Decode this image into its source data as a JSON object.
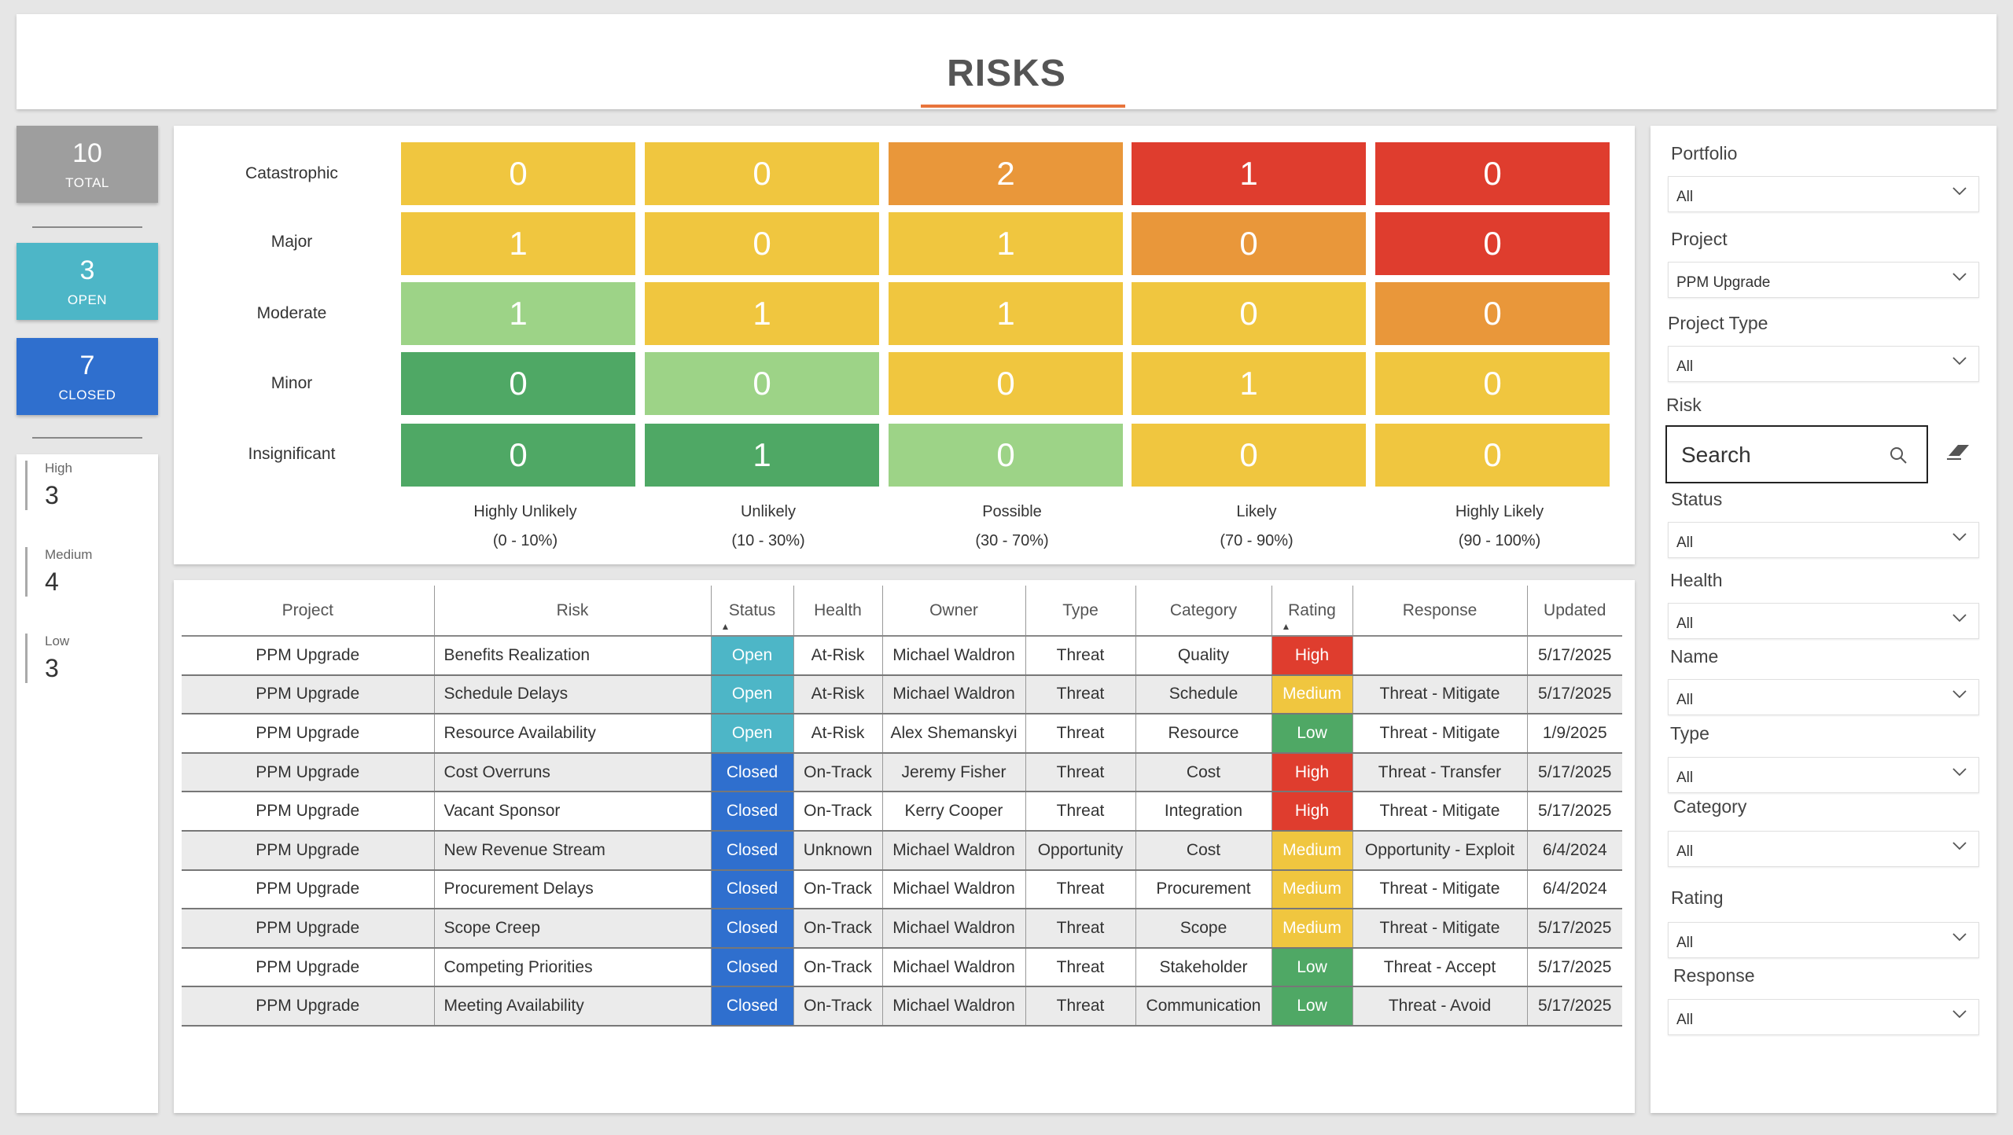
{
  "title": "RISKS",
  "summary": {
    "total": {
      "count": "10",
      "label": "TOTAL"
    },
    "open": {
      "count": "3",
      "label": "OPEN"
    },
    "closed": {
      "count": "7",
      "label": "CLOSED"
    }
  },
  "ratings": [
    {
      "label": "High",
      "count": "3"
    },
    {
      "label": "Medium",
      "count": "4"
    },
    {
      "label": "Low",
      "count": "3"
    }
  ],
  "matrix": {
    "impacts": [
      "Catastrophic",
      "Major",
      "Moderate",
      "Minor",
      "Insignificant"
    ],
    "likelihoods": [
      {
        "name": "Highly Unlikely",
        "range": "(0 - 10%)"
      },
      {
        "name": "Unlikely",
        "range": "(10 - 30%)"
      },
      {
        "name": "Possible",
        "range": "(30 - 70%)"
      },
      {
        "name": "Likely",
        "range": "(70 - 90%)"
      },
      {
        "name": "Highly Likely",
        "range": "(90 - 100%)"
      }
    ],
    "values": [
      [
        "0",
        "0",
        "2",
        "1",
        "0"
      ],
      [
        "1",
        "0",
        "1",
        "0",
        "0"
      ],
      [
        "1",
        "1",
        "1",
        "0",
        "0"
      ],
      [
        "0",
        "0",
        "0",
        "1",
        "0"
      ],
      [
        "0",
        "1",
        "0",
        "0",
        "0"
      ]
    ],
    "colors": [
      [
        "#f0c63f",
        "#f0c63f",
        "#e9973a",
        "#df3d2e",
        "#df3d2e"
      ],
      [
        "#f0c63f",
        "#f0c63f",
        "#f0c63f",
        "#e9973a",
        "#df3d2e"
      ],
      [
        "#9dd387",
        "#f0c63f",
        "#f0c63f",
        "#f0c63f",
        "#e9973a"
      ],
      [
        "#4fa865",
        "#9dd387",
        "#f0c63f",
        "#f0c63f",
        "#f0c63f"
      ],
      [
        "#4fa865",
        "#4fa865",
        "#9dd387",
        "#f0c63f",
        "#f0c63f"
      ]
    ]
  },
  "table": {
    "headers": [
      "Project",
      "Risk",
      "Status",
      "Health",
      "Owner",
      "Type",
      "Category",
      "Rating",
      "Response",
      "Updated"
    ],
    "rows": [
      [
        "PPM Upgrade",
        "Benefits Realization",
        "Open",
        "At-Risk",
        "Michael Waldron",
        "Threat",
        "Quality",
        "High",
        "",
        "5/17/2025"
      ],
      [
        "PPM Upgrade",
        "Schedule Delays",
        "Open",
        "At-Risk",
        "Michael Waldron",
        "Threat",
        "Schedule",
        "Medium",
        "Threat - Mitigate",
        "5/17/2025"
      ],
      [
        "PPM Upgrade",
        "Resource Availability",
        "Open",
        "At-Risk",
        "Alex Shemanskyi",
        "Threat",
        "Resource",
        "Low",
        "Threat - Mitigate",
        "1/9/2025"
      ],
      [
        "PPM Upgrade",
        "Cost Overruns",
        "Closed",
        "On-Track",
        "Jeremy Fisher",
        "Threat",
        "Cost",
        "High",
        "Threat - Transfer",
        "5/17/2025"
      ],
      [
        "PPM Upgrade",
        "Vacant Sponsor",
        "Closed",
        "On-Track",
        "Kerry Cooper",
        "Threat",
        "Integration",
        "High",
        "Threat - Mitigate",
        "5/17/2025"
      ],
      [
        "PPM Upgrade",
        "New Revenue Stream",
        "Closed",
        "Unknown",
        "Michael Waldron",
        "Opportunity",
        "Cost",
        "Medium",
        "Opportunity - Exploit",
        "6/4/2024"
      ],
      [
        "PPM Upgrade",
        "Procurement Delays",
        "Closed",
        "On-Track",
        "Michael Waldron",
        "Threat",
        "Procurement",
        "Medium",
        "Threat - Mitigate",
        "6/4/2024"
      ],
      [
        "PPM Upgrade",
        "Scope Creep",
        "Closed",
        "On-Track",
        "Michael Waldron",
        "Threat",
        "Scope",
        "Medium",
        "Threat - Mitigate",
        "5/17/2025"
      ],
      [
        "PPM Upgrade",
        "Competing Priorities",
        "Closed",
        "On-Track",
        "Michael Waldron",
        "Threat",
        "Stakeholder",
        "Low",
        "Threat - Accept",
        "5/17/2025"
      ],
      [
        "PPM Upgrade",
        "Meeting Availability",
        "Closed",
        "On-Track",
        "Michael Waldron",
        "Threat",
        "Communication",
        "Low",
        "Threat - Avoid",
        "5/17/2025"
      ]
    ]
  },
  "filters": {
    "portfolio": {
      "label": "Portfolio",
      "value": "All"
    },
    "project": {
      "label": "Project",
      "value": "PPM Upgrade"
    },
    "project_type": {
      "label": "Project Type",
      "value": "All"
    },
    "risk": {
      "label": "Risk",
      "placeholder": "Search"
    },
    "status": {
      "label": "Status",
      "value": "All"
    },
    "health": {
      "label": "Health",
      "value": "All"
    },
    "name": {
      "label": "Name",
      "value": "All"
    },
    "type": {
      "label": "Type",
      "value": "All"
    },
    "category": {
      "label": "Category",
      "value": "All"
    },
    "rating": {
      "label": "Rating",
      "value": "All"
    },
    "response": {
      "label": "Response",
      "value": "All"
    }
  },
  "colors": {
    "open": "#4db6c7",
    "closed": "#2f6fce",
    "high": "#df3d2e",
    "medium": "#f0c63f",
    "low": "#4fa865",
    "accent": "#e8743b"
  },
  "icons": [
    "search-icon",
    "eraser-icon",
    "chevron-down-icon"
  ]
}
